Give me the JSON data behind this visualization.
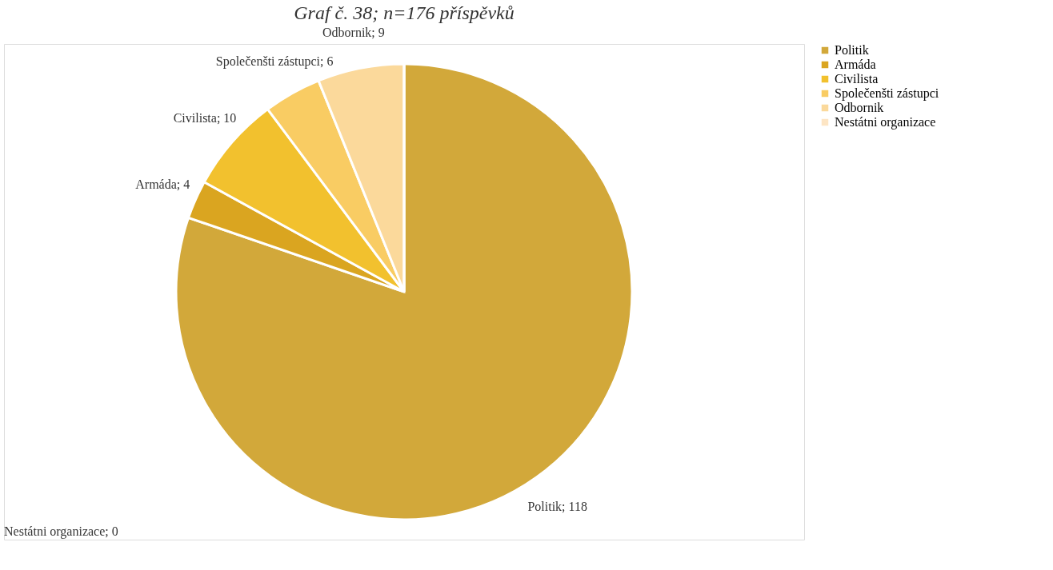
{
  "chart_data": {
    "type": "pie",
    "subtitle": "Graf č. 38; n=176 příspěvků",
    "categories": [
      "Politik",
      "Armáda",
      "Civilista",
      "Společenšti zástupci",
      "Odbornik",
      "Nestátni organizace"
    ],
    "values": [
      118,
      4,
      10,
      6,
      9,
      0
    ],
    "colors": [
      "#d2a83a",
      "#daa520",
      "#f2c12e",
      "#f9cc63",
      "#fbd99b",
      "#fde5c4"
    ],
    "value_labels": [
      "Politik; 118",
      "Armáda; 4",
      "Civilista; 10",
      "Společenšti zástupci; 6",
      "Odbornik; 9",
      "Nestátni organizace;  0"
    ],
    "legend": "right"
  }
}
